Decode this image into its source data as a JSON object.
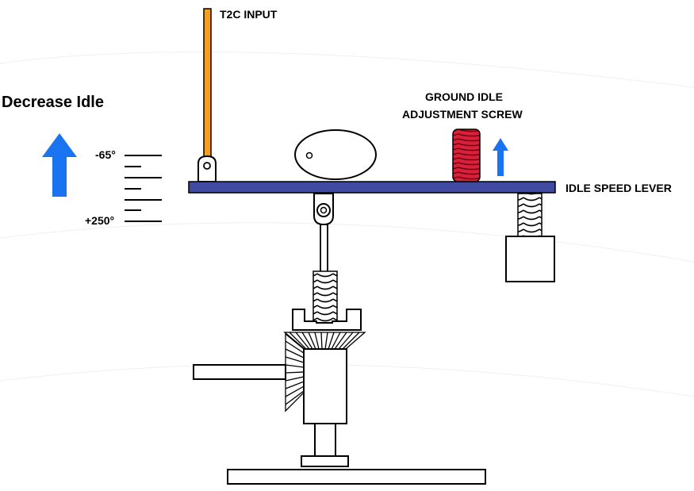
{
  "labels": {
    "title": "Decrease Idle",
    "t2c_input": "T2C INPUT",
    "ground_idle_line1": "GROUND IDLE",
    "ground_idle_line2": "ADJUSTMENT SCREW",
    "idle_speed_lever": "IDLE SPEED LEVER",
    "scale_top": "-65°",
    "scale_bottom": "+250°"
  },
  "colors": {
    "arrow": "#1a73f0",
    "t2c_rod": "#f5a01c",
    "lever": "#3f4aa0",
    "screw": "#d8203a",
    "outline": "#000000"
  },
  "icons": {
    "decrease_arrow": "up-arrow-icon",
    "screw_direction": "up-arrow-icon"
  }
}
